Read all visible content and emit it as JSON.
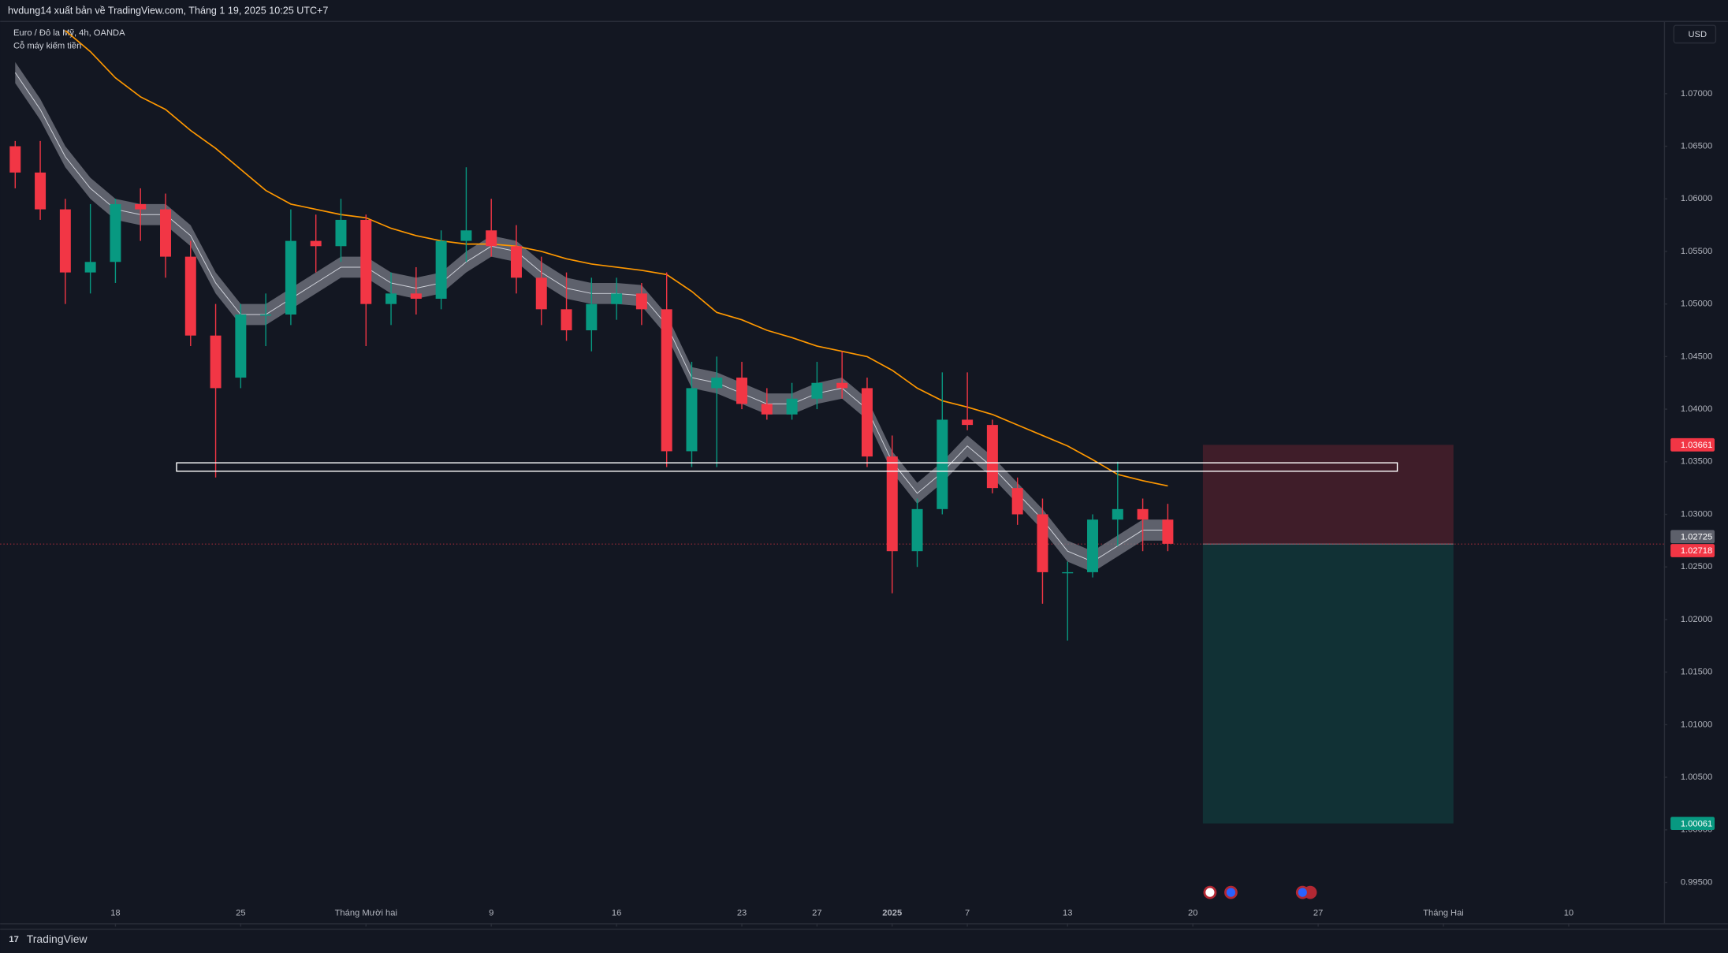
{
  "header": {
    "text": "hvdung14 xuất bản về TradingView.com, Tháng 1 19, 2025 10:25 UTC+7"
  },
  "footer": {
    "brand": "TradingView"
  },
  "chart_data": {
    "type": "candlestick",
    "title": "Euro / Đô la Mỹ, 4h, OANDA",
    "subtitle": "Cỗ máy kiếm tiền",
    "currency": "USD",
    "up_color": "#089981",
    "down_color": "#f23645",
    "xlim": [
      -0.6,
      65.8
    ],
    "ylim": [
      0.99112,
      1.07681
    ],
    "xticks": [
      {
        "value": 4,
        "label": "18"
      },
      {
        "value": 9,
        "label": "25"
      },
      {
        "value": 14,
        "label": "Tháng Mười hai"
      },
      {
        "value": 19,
        "label": "9"
      },
      {
        "value": 24,
        "label": "16"
      },
      {
        "value": 29,
        "label": "23"
      },
      {
        "value": 32,
        "label": "27"
      },
      {
        "value": 35,
        "label": "2025"
      },
      {
        "value": 38,
        "label": "7"
      },
      {
        "value": 42,
        "label": "13"
      },
      {
        "value": 47,
        "label": "20"
      },
      {
        "value": 52,
        "label": "27"
      },
      {
        "value": 57,
        "label": "Tháng Hai"
      },
      {
        "value": 62,
        "label": "10"
      }
    ],
    "yticks": [
      {
        "value": 1.07,
        "label": "1.07000"
      },
      {
        "value": 1.065,
        "label": "1.06500"
      },
      {
        "value": 1.06,
        "label": "1.06000"
      },
      {
        "value": 1.055,
        "label": "1.05500"
      },
      {
        "value": 1.05,
        "label": "1.05000"
      },
      {
        "value": 1.045,
        "label": "1.04500"
      },
      {
        "value": 1.04,
        "label": "1.04000"
      },
      {
        "value": 1.035,
        "label": "1.03500"
      },
      {
        "value": 1.03,
        "label": "1.03000"
      },
      {
        "value": 1.025,
        "label": "1.02500"
      },
      {
        "value": 1.02,
        "label": "1.02000"
      },
      {
        "value": 1.015,
        "label": "1.01500"
      },
      {
        "value": 1.01,
        "label": "1.01000"
      },
      {
        "value": 1.005,
        "label": "1.00500"
      },
      {
        "value": 1.0,
        "label": "1.00000"
      },
      {
        "value": 0.995,
        "label": "0.99500"
      }
    ],
    "open": [
      1.065,
      1.0625,
      1.059,
      1.053,
      1.054,
      1.0595,
      1.059,
      1.0545,
      1.047,
      1.043,
      1.049,
      1.049,
      1.056,
      1.0555,
      1.058,
      1.05,
      1.051,
      1.0505,
      1.056,
      1.057,
      1.0555,
      1.0525,
      1.0495,
      1.0475,
      1.05,
      1.051,
      1.0495,
      1.036,
      1.042,
      1.043,
      1.0405,
      1.0395,
      1.041,
      1.0425,
      1.042,
      1.0355,
      1.0265,
      1.0305,
      1.039,
      1.0385,
      1.0325,
      1.03,
      1.0245,
      1.0245,
      1.0295,
      1.0305,
      1.0295
    ],
    "high": [
      1.0655,
      1.0655,
      1.06,
      1.0595,
      1.06,
      1.061,
      1.0605,
      1.056,
      1.05,
      1.05,
      1.051,
      1.059,
      1.0585,
      1.06,
      1.0585,
      1.053,
      1.0535,
      1.057,
      1.063,
      1.06,
      1.0575,
      1.0545,
      1.053,
      1.0525,
      1.0525,
      1.052,
      1.053,
      1.0445,
      1.045,
      1.0445,
      1.042,
      1.0425,
      1.0445,
      1.0455,
      1.043,
      1.0375,
      1.0315,
      1.0435,
      1.0435,
      1.039,
      1.0335,
      1.0315,
      1.0255,
      1.03,
      1.035,
      1.0315,
      1.031
    ],
    "low": [
      1.061,
      1.058,
      1.05,
      1.051,
      1.052,
      1.056,
      1.0525,
      1.046,
      1.0335,
      1.042,
      1.046,
      1.048,
      1.053,
      1.054,
      1.046,
      1.048,
      1.049,
      1.0495,
      1.054,
      1.0545,
      1.051,
      1.048,
      1.0465,
      1.0455,
      1.0485,
      1.048,
      1.0345,
      1.0345,
      1.0345,
      1.04,
      1.039,
      1.039,
      1.04,
      1.041,
      1.0345,
      1.0225,
      1.025,
      1.03,
      1.038,
      1.032,
      1.029,
      1.0215,
      1.018,
      1.024,
      1.027,
      1.0265,
      1.0265
    ],
    "close": [
      1.0625,
      1.059,
      1.053,
      1.054,
      1.0595,
      1.059,
      1.0545,
      1.047,
      1.042,
      1.049,
      1.049,
      1.056,
      1.0555,
      1.058,
      1.05,
      1.051,
      1.0505,
      1.056,
      1.057,
      1.0555,
      1.0525,
      1.0495,
      1.0475,
      1.05,
      1.051,
      1.0495,
      1.036,
      1.042,
      1.043,
      1.0405,
      1.0395,
      1.041,
      1.0425,
      1.042,
      1.0355,
      1.0265,
      1.0305,
      1.039,
      1.0385,
      1.0325,
      1.03,
      1.0245,
      1.0245,
      1.0295,
      1.0305,
      1.0295,
      1.0272
    ],
    "moving_average": {
      "color": "#ff9800",
      "values": [
        null,
        null,
        1.076,
        1.074,
        1.0715,
        1.0697,
        1.0685,
        1.0665,
        1.0648,
        1.0628,
        1.0608,
        1.0595,
        1.059,
        1.0585,
        1.0582,
        1.0572,
        1.0565,
        1.056,
        1.0557,
        1.0557,
        1.0555,
        1.055,
        1.0543,
        1.0538,
        1.0535,
        1.0532,
        1.0528,
        1.0512,
        1.0492,
        1.0485,
        1.0475,
        1.0468,
        1.046,
        1.0455,
        1.045,
        1.0437,
        1.042,
        1.0408,
        1.0402,
        1.0395,
        1.0385,
        1.0375,
        1.0365,
        1.0352,
        1.0338,
        1.0332,
        1.0327
      ]
    },
    "envelope": {
      "color": "#787b86",
      "line_color": "#d1d4dc",
      "halfwidth": 0.001,
      "center": [
        1.072,
        1.0685,
        1.064,
        1.061,
        1.059,
        1.0585,
        1.0585,
        1.0565,
        1.052,
        1.049,
        1.049,
        1.0505,
        1.052,
        1.0535,
        1.0535,
        1.052,
        1.0515,
        1.052,
        1.054,
        1.0555,
        1.055,
        1.053,
        1.0515,
        1.051,
        1.051,
        1.0508,
        1.048,
        1.043,
        1.0425,
        1.0415,
        1.0405,
        1.0405,
        1.0415,
        1.042,
        1.04,
        1.035,
        1.032,
        1.034,
        1.0365,
        1.0345,
        1.032,
        1.0295,
        1.0265,
        1.0255,
        1.027,
        1.0285,
        1.0285
      ]
    },
    "zone": {
      "x": [
        6.44,
        55.16
      ],
      "y": [
        1.0341,
        1.0349
      ]
    },
    "position": {
      "x": [
        47.4,
        57.4
      ],
      "entry": {
        "value": 1.02718,
        "label": "1.02718"
      },
      "stop": {
        "value": 1.03661,
        "label": "1.03661"
      },
      "target": {
        "value": 1.00061,
        "label": "1.00061"
      }
    },
    "last_price": {
      "value": 1.02725,
      "label": "1.02725"
    }
  }
}
